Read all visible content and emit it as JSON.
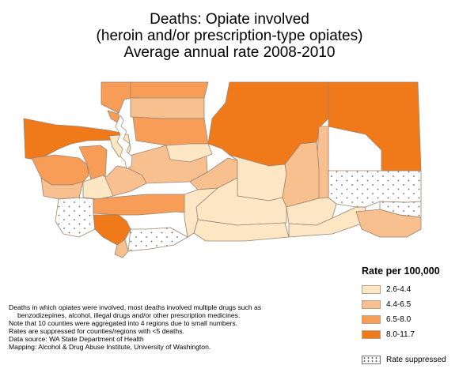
{
  "title": {
    "line1": "Deaths: Opiate involved",
    "line2": "(heroin and/or prescription-type opiates)",
    "line3": "Average annual rate 2008-2010"
  },
  "legend": {
    "title": "Rate per 100,000",
    "items": [
      {
        "label": "2.6-4.4",
        "color": "#fde6c4"
      },
      {
        "label": "4.4-6.5",
        "color": "#f9c08f"
      },
      {
        "label": "6.5-8.0",
        "color": "#f79d58"
      },
      {
        "label": "8.0-11.7",
        "color": "#f07a1a"
      }
    ],
    "suppressed_label": "Rate suppressed"
  },
  "notes": [
    "Deaths in which opiates were involved, most deaths involved multiple drugs such as",
    "benzodizepines, alcohol, illegal drugs and/or other prescription medicines.",
    "Note that 10 counties were aggregated into 4 regions due to small numbers.",
    "Rates are suppressed for counties/regions with <5 deaths.",
    "Data source: WA State Department of Health",
    "Mapping: Alcohol & Drug Abuse Institute, University of Washington."
  ],
  "colors": {
    "c1": "#fde6c4",
    "c2": "#f9c08f",
    "c3": "#f79d58",
    "c4": "#f07a1a",
    "suppressed": "#ffffff",
    "border": "#9a8472"
  }
}
